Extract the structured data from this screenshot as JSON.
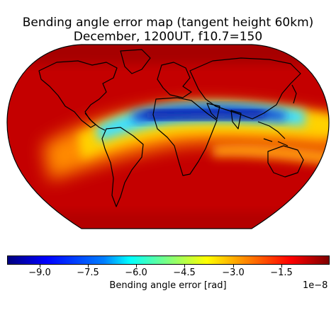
{
  "map": {
    "title_line1": "Bending angle error map (tangent height 60km)",
    "title_line2": "December, 1200UT, f10.7=150",
    "projection": "Robinson-like global map",
    "colormap": "jet",
    "features": [
      "world-coastlines",
      "error-band-pattern"
    ]
  },
  "colorbar": {
    "label": "Bending angle error [rad]",
    "exponent": "1e−8",
    "min": -10.0,
    "max": 0.0,
    "ticks": [
      "−9.0",
      "−7.5",
      "−6.0",
      "−4.5",
      "−3.0",
      "−1.5"
    ],
    "tick_values": [
      -9.0,
      -7.5,
      -6.0,
      -4.5,
      -3.0,
      -1.5
    ]
  }
}
